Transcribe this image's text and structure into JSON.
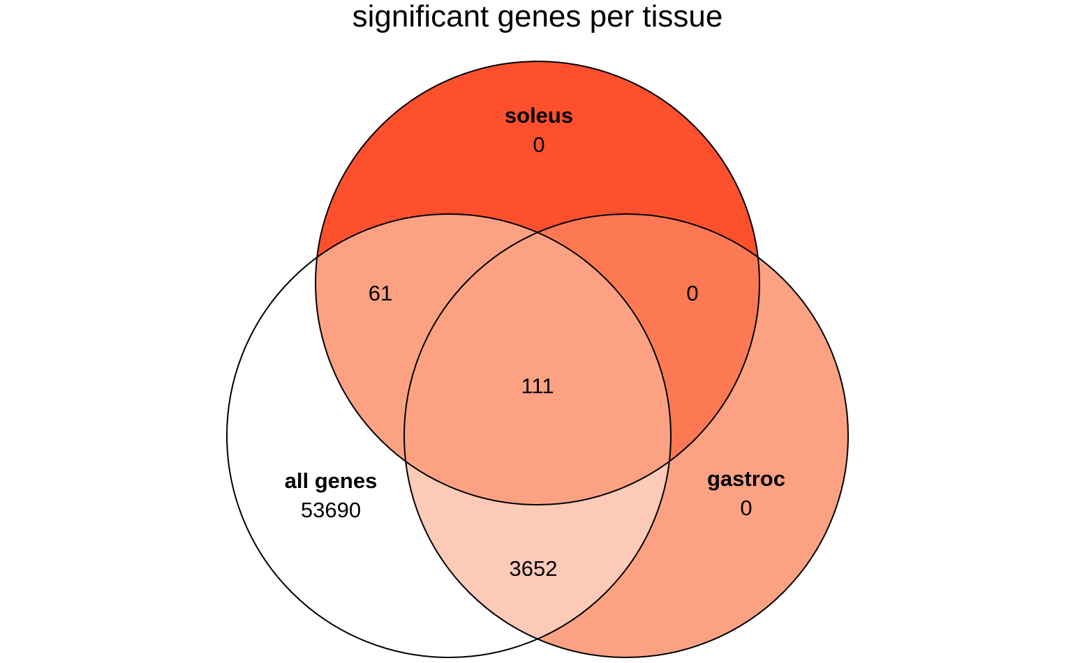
{
  "title": "significant genes per tissue",
  "sets": {
    "soleus": {
      "name": "soleus",
      "only": "0"
    },
    "all_genes": {
      "name": "all genes",
      "only": "53690"
    },
    "gastroc": {
      "name": "gastroc",
      "only": "0"
    }
  },
  "intersections": {
    "soleus_all_genes": "61",
    "soleus_gastroc": "0",
    "all_three": "111",
    "all_genes_gastroc": "3652"
  },
  "colors": {
    "soleus_only": "#FF502D",
    "soleus_all_genes": "#FCA283",
    "soleus_gastroc": "#FD7953",
    "all_three": "#FCA283",
    "all_genes_gastroc": "#FDCAB8",
    "gastroc_only": "#FCA283",
    "all_genes_only": "#FFFFFF"
  }
}
